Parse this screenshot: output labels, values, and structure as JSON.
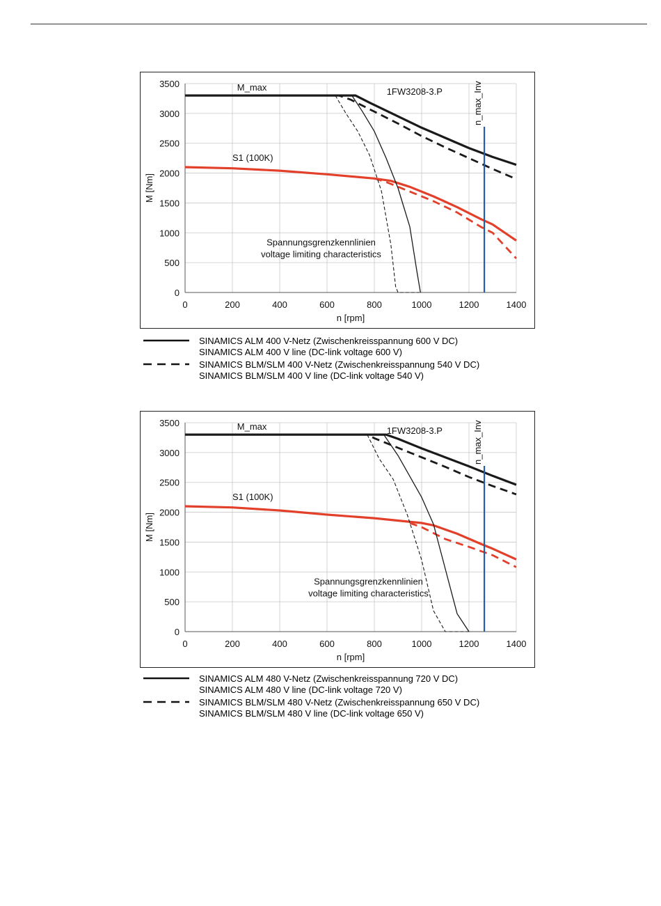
{
  "chart_data": [
    {
      "type": "line",
      "xlabel": "n [rpm]",
      "ylabel": "M [Nm]",
      "xlim": [
        0,
        1400
      ],
      "ylim": [
        0,
        3500
      ],
      "xticks": [
        0,
        200,
        400,
        600,
        800,
        1000,
        1200,
        1400
      ],
      "yticks": [
        0,
        500,
        1000,
        1500,
        2000,
        2500,
        3000,
        3500
      ],
      "grid": true,
      "annotations": {
        "mmax": "M_max",
        "s1": "S1 (100K)",
        "model": "1FW3208-3.P",
        "nmax_inv": "n_max_Inv",
        "voltage_de": "Spannungsgrenzkennlinien",
        "voltage_en": "voltage limiting characteristics"
      },
      "nmax_inv_x": 1265,
      "series": [
        {
          "color": "#1a1a1a",
          "style": "solid",
          "width": 3.2,
          "x": [
            0,
            720,
            780,
            900,
            1000,
            1100,
            1200,
            1300,
            1400
          ],
          "y": [
            3300,
            3300,
            3180,
            2950,
            2760,
            2590,
            2420,
            2270,
            2140
          ]
        },
        {
          "color": "#1a1a1a",
          "style": "dashed",
          "width": 2.8,
          "x": [
            0,
            650,
            700,
            800,
            900,
            1000,
            1100,
            1200,
            1300,
            1400
          ],
          "y": [
            3300,
            3300,
            3230,
            3030,
            2830,
            2620,
            2430,
            2250,
            2070,
            1900
          ]
        },
        {
          "color": "#e2402b",
          "style": "solid",
          "width": 3.2,
          "x": [
            0,
            200,
            400,
            600,
            800,
            870,
            950,
            1050,
            1150,
            1250,
            1300,
            1400
          ],
          "y": [
            2100,
            2080,
            2040,
            1980,
            1910,
            1870,
            1770,
            1610,
            1430,
            1230,
            1140,
            870
          ]
        },
        {
          "color": "#e2402b",
          "style": "dashed",
          "width": 2.8,
          "x": [
            800,
            850,
            950,
            1050,
            1150,
            1250,
            1300,
            1400
          ],
          "y": [
            1910,
            1850,
            1690,
            1530,
            1340,
            1100,
            1000,
            570
          ]
        },
        {
          "color": "#1a1a1a",
          "style": "solid",
          "width": 1.3,
          "x": [
            705,
            750,
            800,
            850,
            900,
            950,
            980,
            995
          ],
          "y": [
            3300,
            3030,
            2700,
            2250,
            1750,
            1100,
            350,
            0
          ]
        },
        {
          "color": "#1a1a1a",
          "style": "dashed",
          "width": 1.1,
          "x": [
            635,
            680,
            730,
            780,
            830,
            870,
            890,
            900,
            990
          ],
          "y": [
            3300,
            3000,
            2700,
            2300,
            1700,
            800,
            100,
            0,
            0
          ]
        }
      ]
    },
    {
      "type": "line",
      "xlabel": "n [rpm]",
      "ylabel": "M [Nm]",
      "xlim": [
        0,
        1400
      ],
      "ylim": [
        0,
        3500
      ],
      "xticks": [
        0,
        200,
        400,
        600,
        800,
        1000,
        1200,
        1400
      ],
      "yticks": [
        0,
        500,
        1000,
        1500,
        2000,
        2500,
        3000,
        3500
      ],
      "grid": true,
      "annotations": {
        "mmax": "M_max",
        "s1": "S1 (100K)",
        "model": "1FW3208-3.P",
        "nmax_inv": "n_max_Inv",
        "voltage_de": "Spannungsgrenzkennlinien",
        "voltage_en": "voltage limiting characteristics"
      },
      "nmax_inv_x": 1265,
      "series": [
        {
          "color": "#1a1a1a",
          "style": "solid",
          "width": 3.2,
          "x": [
            0,
            850,
            900,
            1000,
            1100,
            1200,
            1300,
            1400
          ],
          "y": [
            3300,
            3300,
            3230,
            3070,
            2920,
            2770,
            2610,
            2460
          ]
        },
        {
          "color": "#1a1a1a",
          "style": "dashed",
          "width": 2.8,
          "x": [
            0,
            770,
            800,
            900,
            1000,
            1100,
            1200,
            1300,
            1400
          ],
          "y": [
            3300,
            3300,
            3240,
            3080,
            2920,
            2760,
            2590,
            2440,
            2300
          ]
        },
        {
          "color": "#e2402b",
          "style": "solid",
          "width": 3.2,
          "x": [
            0,
            200,
            400,
            600,
            800,
            1000,
            1050,
            1150,
            1250,
            1300,
            1400
          ],
          "y": [
            2100,
            2080,
            2030,
            1960,
            1900,
            1820,
            1780,
            1640,
            1470,
            1390,
            1210
          ]
        },
        {
          "color": "#e2402b",
          "style": "dashed",
          "width": 2.8,
          "x": [
            950,
            1000,
            1100,
            1200,
            1300,
            1400
          ],
          "y": [
            1820,
            1750,
            1550,
            1420,
            1280,
            1080
          ]
        },
        {
          "color": "#1a1a1a",
          "style": "solid",
          "width": 1.3,
          "x": [
            840,
            900,
            950,
            1000,
            1050,
            1100,
            1150,
            1200
          ],
          "y": [
            3300,
            2950,
            2600,
            2250,
            1800,
            1050,
            300,
            0
          ]
        },
        {
          "color": "#1a1a1a",
          "style": "dashed",
          "width": 1.1,
          "x": [
            770,
            820,
            880,
            940,
            1000,
            1050,
            1100,
            1200
          ],
          "y": [
            3300,
            2900,
            2550,
            1950,
            1200,
            350,
            0,
            0
          ]
        }
      ]
    }
  ],
  "legends": [
    {
      "solid_line1": "SINAMICS ALM  400 V-Netz (Zwischenkreisspannung 600 V DC)",
      "solid_line2": "SINAMICS ALM  400 V line (DC-link voltage 600 V)",
      "dashed_line1": "SINAMICS BLM/SLM  400 V-Netz (Zwischenkreisspannung 540 V DC)",
      "dashed_line2": "SINAMICS BLM/SLM  400 V line (DC-link voltage 540 V)"
    },
    {
      "solid_line1": "SINAMICS ALM  480 V-Netz (Zwischenkreisspannung 720 V DC)",
      "solid_line2": "SINAMICS ALM  480 V line (DC-link voltage 720 V)",
      "dashed_line1": "SINAMICS BLM/SLM  480 V-Netz (Zwischenkreisspannung 650 V DC)",
      "dashed_line2": "SINAMICS BLM/SLM  480 V line (DC-link voltage 650 V)"
    }
  ]
}
